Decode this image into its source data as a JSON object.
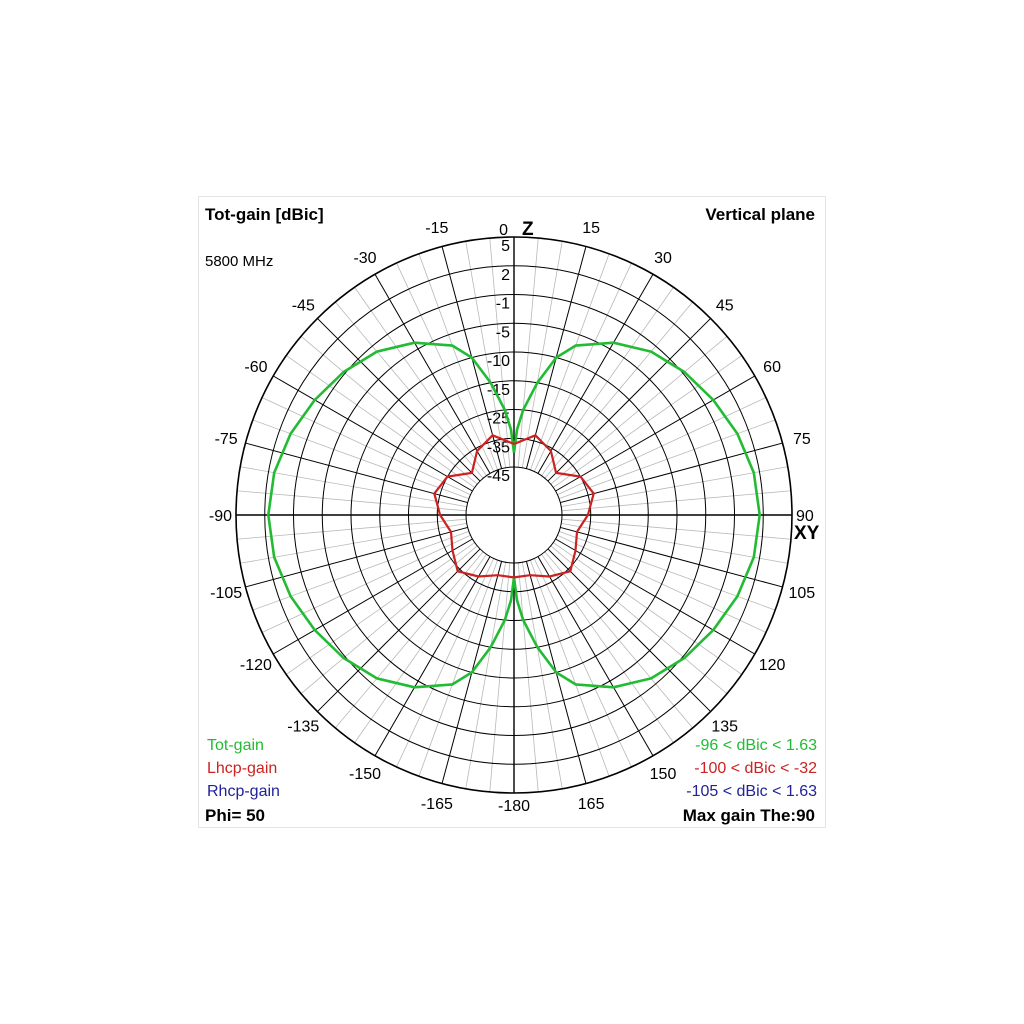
{
  "header": {
    "title": "Tot-gain [dBic]",
    "frequency": "5800 MHz",
    "plane": "Vertical plane"
  },
  "legend": {
    "tot": {
      "label": "Tot-gain",
      "range": "-96 < dBic < 1.63",
      "color": "#22bb33"
    },
    "lhcp": {
      "label": "Lhcp-gain",
      "range": "-100 < dBic < -32",
      "color": "#cc2222"
    },
    "rhcp": {
      "label": "Rhcp-gain",
      "range": "-105 < dBic < 1.63",
      "color": "#222299"
    }
  },
  "footer": {
    "phi": "Phi= 50",
    "max_gain": "Max gain The:90"
  },
  "chart_data": {
    "type": "polar",
    "angle_unit": "deg",
    "angle_ticks": [
      0,
      15,
      30,
      45,
      60,
      75,
      90,
      105,
      120,
      135,
      150,
      165,
      -180,
      -165,
      -150,
      -135,
      -120,
      -105,
      -90,
      -75,
      -60,
      -45,
      -30,
      -15
    ],
    "angle_labels": [
      "0",
      "15",
      "30",
      "45",
      "60",
      "75",
      "90",
      "105",
      "120",
      "135",
      "150",
      "165",
      "-180",
      "-165",
      "-150",
      "-135",
      "-120",
      "-105",
      "-90",
      "-75",
      "-60",
      "-45",
      "-30",
      "-15"
    ],
    "radial_ticks": [
      5,
      2,
      -1,
      -5,
      -10,
      -15,
      -25,
      -35,
      -45
    ],
    "radial_labels": [
      "5",
      "2",
      "-1",
      "-5",
      "-10",
      "-15",
      "-25",
      "-35",
      "-45"
    ],
    "axis_top": "Z",
    "axis_right": "XY",
    "grid": true,
    "series": [
      {
        "name": "Tot-gain",
        "color": "#22bb33",
        "theta": [
          0,
          2,
          5,
          10,
          15,
          20,
          30,
          40,
          50,
          60,
          70,
          80,
          90,
          100,
          110,
          120,
          130,
          140,
          150,
          160,
          165,
          170,
          175,
          178,
          180
        ],
        "gain": [
          -40,
          -32,
          -25,
          -15,
          -10,
          -7,
          -4,
          -2,
          -0.8,
          0,
          0.8,
          1.4,
          1.63,
          1.4,
          0.8,
          0,
          -0.8,
          -2,
          -4,
          -7,
          -10,
          -15,
          -25,
          -32,
          -40
        ]
      },
      {
        "name": "Lhcp-gain",
        "color": "#cc2222",
        "theta": [
          0,
          15,
          30,
          45,
          60,
          75,
          90,
          105,
          120,
          135,
          150,
          165,
          180,
          195,
          210,
          225,
          240,
          255,
          270,
          285,
          300,
          315,
          330,
          345,
          360
        ],
        "gain": [
          -37,
          -33,
          -36,
          -41,
          -35,
          -33,
          -36,
          -39,
          -37,
          -34,
          -37,
          -40,
          -40,
          -40,
          -37,
          -34,
          -37,
          -39,
          -36,
          -33,
          -35,
          -41,
          -36,
          -33,
          -37
        ]
      }
    ]
  }
}
